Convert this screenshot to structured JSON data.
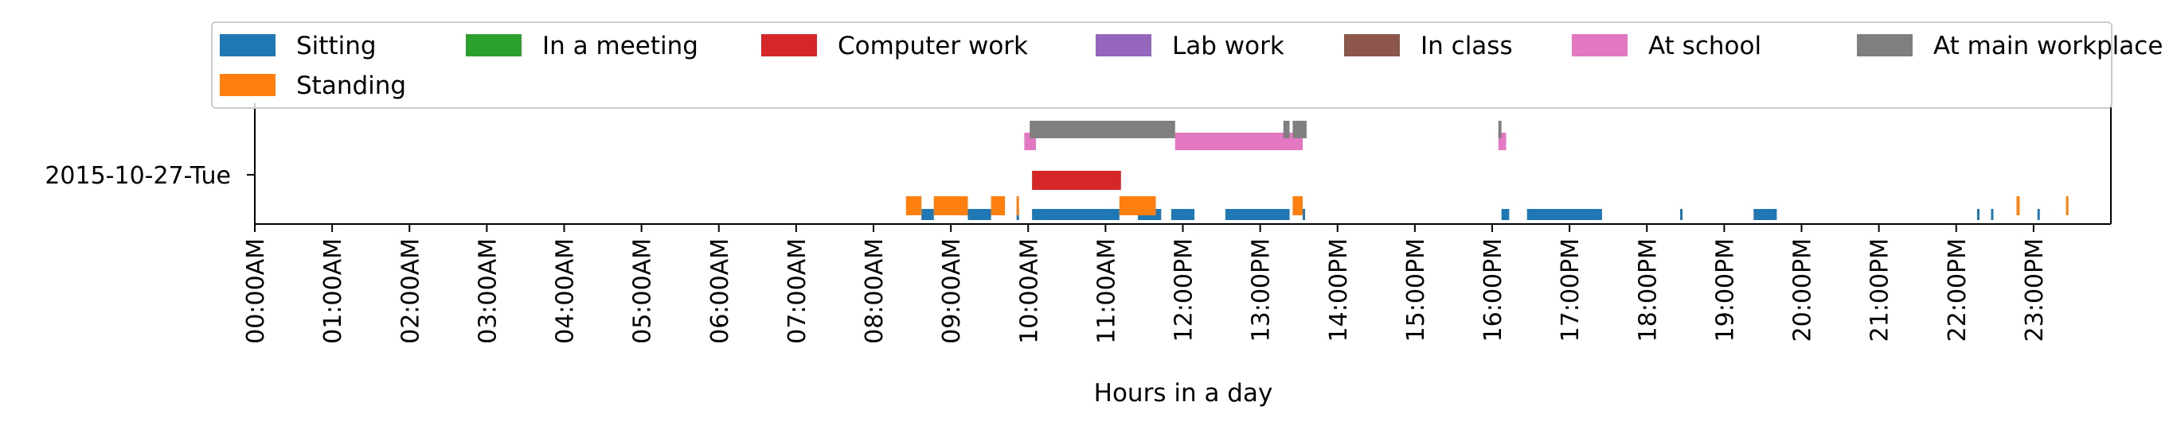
{
  "chart_data": {
    "type": "bar",
    "subtype": "activity-timeline",
    "title": "",
    "xlabel": "Hours in a day",
    "ylabel": "",
    "xlim": [
      0,
      24
    ],
    "grid": false,
    "legend_position": "top",
    "row_label": "2015-10-27-Tue",
    "x_tick_labels": [
      "00:00AM",
      "01:00AM",
      "02:00AM",
      "03:00AM",
      "04:00AM",
      "05:00AM",
      "06:00AM",
      "07:00AM",
      "08:00AM",
      "09:00AM",
      "10:00AM",
      "11:00AM",
      "12:00PM",
      "13:00PM",
      "14:00PM",
      "15:00PM",
      "16:00PM",
      "17:00PM",
      "18:00PM",
      "19:00PM",
      "20:00PM",
      "21:00PM",
      "22:00PM",
      "23:00PM"
    ],
    "series": [
      {
        "name": "Sitting",
        "color": "#1f77b4",
        "lane": 0,
        "intervals": [
          [
            8.62,
            8.78
          ],
          [
            9.22,
            9.52
          ],
          [
            9.85,
            9.88
          ],
          [
            10.05,
            11.18
          ],
          [
            11.42,
            11.72
          ],
          [
            11.85,
            12.15
          ],
          [
            12.55,
            13.38
          ],
          [
            13.55,
            13.58
          ],
          [
            16.12,
            16.22
          ],
          [
            16.45,
            17.42
          ],
          [
            18.43,
            18.46
          ],
          [
            19.38,
            19.68
          ],
          [
            22.27,
            22.3
          ],
          [
            22.45,
            22.48
          ],
          [
            23.05,
            23.08
          ]
        ]
      },
      {
        "name": "Standing",
        "color": "#ff7f0e",
        "lane": 1,
        "intervals": [
          [
            8.42,
            8.62
          ],
          [
            8.78,
            9.22
          ],
          [
            9.52,
            9.7
          ],
          [
            9.85,
            9.88
          ],
          [
            11.18,
            11.65
          ],
          [
            13.42,
            13.55
          ],
          [
            22.78,
            22.82
          ],
          [
            23.42,
            23.45
          ]
        ]
      },
      {
        "name": "In a meeting",
        "color": "#2ca02c",
        "lane": 2,
        "intervals": []
      },
      {
        "name": "Computer work",
        "color": "#d62728",
        "lane": 3,
        "intervals": [
          [
            10.05,
            11.2
          ]
        ]
      },
      {
        "name": "Lab work",
        "color": "#9467bd",
        "lane": 4,
        "intervals": []
      },
      {
        "name": "In class",
        "color": "#8c564b",
        "lane": 5,
        "intervals": []
      },
      {
        "name": "At school",
        "color": "#e377c2",
        "lane": 6,
        "intervals": [
          [
            9.95,
            10.1
          ],
          [
            11.9,
            13.55
          ],
          [
            16.08,
            16.18
          ]
        ]
      },
      {
        "name": "At main workplace",
        "color": "#7f7f7f",
        "lane": 7,
        "intervals": [
          [
            10.02,
            11.9
          ],
          [
            13.3,
            13.38
          ],
          [
            13.42,
            13.6
          ],
          [
            16.08,
            16.12
          ]
        ]
      }
    ]
  }
}
